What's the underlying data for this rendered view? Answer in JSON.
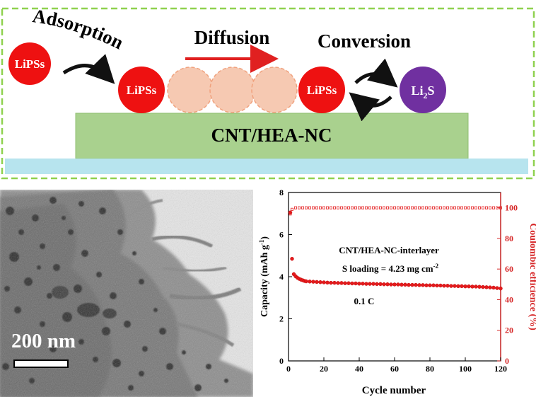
{
  "scheme": {
    "labels": {
      "adsorption": "Adsorption",
      "diffusion": "Diffusion",
      "conversion": "Conversion",
      "lipss": "LiPSs",
      "li2s_main": "Li",
      "li2s_sub": "2",
      "li2s_end": "S",
      "substrate": "CNT/HEA-NC"
    },
    "colors": {
      "border": "#8fd14f",
      "lipss": "#ee1111",
      "li2s": "#7030a0",
      "ghost": "#f6c9b2",
      "ghost_border": "#f0a27e",
      "substrate": "#a9d18e",
      "substrate_border": "#8fbf70",
      "base": "#b7e4ee",
      "diffusion_arrow": "#e02020"
    }
  },
  "tem": {
    "scale_label": "200 nm"
  },
  "chart_data": {
    "type": "scatter",
    "annotations": {
      "line1": "CNT/HEA-NC-interlayer",
      "line2_main": "S loading = 4.23 mg cm",
      "line2_sup": "-2",
      "line3": "0.1 C"
    },
    "xlabel": "Cycle number",
    "ylabel_main": "Capacity (mAh g",
    "ylabel_sup": "-1",
    "ylabel_end": ")",
    "y2label": "Coulombic efficience (%)",
    "xlim": [
      0,
      120
    ],
    "ylim": [
      0,
      8
    ],
    "y2lim": [
      0,
      110
    ],
    "xticks": [
      "0",
      "20",
      "40",
      "60",
      "80",
      "100",
      "120"
    ],
    "yticks": [
      "0",
      "2",
      "4",
      "6",
      "8"
    ],
    "y2ticks": [
      "0",
      "20",
      "40",
      "60",
      "80",
      "100"
    ],
    "colors": {
      "capacity": "#e41a1c",
      "ce": "#e41a1c",
      "y2axis": "#d62728"
    },
    "series": [
      {
        "role": "capacity",
        "x": [
          1,
          2,
          3,
          4,
          5,
          6,
          7,
          8,
          9,
          10,
          12,
          14,
          16,
          18,
          20,
          22,
          24,
          26,
          28,
          30,
          32,
          34,
          36,
          38,
          40,
          42,
          44,
          46,
          48,
          50,
          52,
          54,
          56,
          58,
          60,
          62,
          64,
          66,
          68,
          70,
          72,
          74,
          76,
          78,
          80,
          82,
          84,
          86,
          88,
          90,
          92,
          94,
          96,
          98,
          100,
          102,
          104,
          106,
          108,
          110,
          112,
          114,
          116,
          118,
          120
        ],
        "y": [
          7.05,
          4.85,
          4.12,
          4.02,
          3.95,
          3.9,
          3.86,
          3.83,
          3.8,
          3.78,
          3.77,
          3.76,
          3.75,
          3.74,
          3.73,
          3.72,
          3.71,
          3.71,
          3.7,
          3.7,
          3.69,
          3.69,
          3.68,
          3.68,
          3.67,
          3.67,
          3.66,
          3.66,
          3.66,
          3.65,
          3.65,
          3.64,
          3.64,
          3.63,
          3.63,
          3.63,
          3.62,
          3.62,
          3.61,
          3.61,
          3.61,
          3.6,
          3.6,
          3.59,
          3.59,
          3.59,
          3.58,
          3.58,
          3.57,
          3.57,
          3.56,
          3.56,
          3.55,
          3.55,
          3.54,
          3.54,
          3.53,
          3.53,
          3.52,
          3.51,
          3.5,
          3.49,
          3.48,
          3.46,
          3.44
        ]
      },
      {
        "role": "ce",
        "x": [
          1,
          2,
          4,
          6,
          8,
          10,
          12,
          14,
          16,
          18,
          20,
          22,
          24,
          26,
          28,
          30,
          32,
          34,
          36,
          38,
          40,
          42,
          44,
          46,
          48,
          50,
          52,
          54,
          56,
          58,
          60,
          62,
          64,
          66,
          68,
          70,
          72,
          74,
          76,
          78,
          80,
          82,
          84,
          86,
          88,
          90,
          92,
          94,
          96,
          98,
          100,
          102,
          104,
          106,
          108,
          110,
          112,
          114,
          116,
          118,
          120
        ],
        "y": [
          96,
          99,
          100,
          100,
          100,
          100,
          100,
          100,
          100,
          100,
          100,
          100,
          100,
          100,
          100,
          100,
          100,
          100,
          100,
          100,
          100,
          100,
          100,
          100,
          100,
          100,
          100,
          100,
          100,
          100,
          100,
          100,
          100,
          100,
          100,
          100,
          100,
          100,
          100,
          100,
          100,
          100,
          100,
          100,
          100,
          100,
          100,
          100,
          100,
          100,
          100,
          100,
          100,
          100,
          100,
          100,
          100,
          100,
          100,
          100,
          100
        ]
      }
    ]
  }
}
